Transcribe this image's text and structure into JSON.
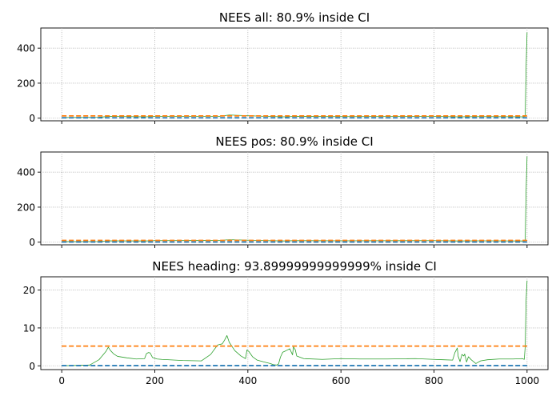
{
  "chart_data": [
    {
      "type": "line",
      "title": "NEES all: 80.9% inside CI",
      "xlabel": "",
      "ylabel": "",
      "xlim": [
        -45,
        1045
      ],
      "ylim": [
        -15,
        515
      ],
      "xticks": [
        0,
        200,
        400,
        600,
        800,
        1000
      ],
      "xtick_labels": [
        "",
        "",
        "",
        "",
        "",
        ""
      ],
      "yticks": [
        0,
        200,
        400
      ],
      "ytick_labels": [
        "0",
        "200",
        "400"
      ],
      "grid": true,
      "series": [
        {
          "role": "nees",
          "color": "#2ca02c",
          "style": "solid",
          "x": [
            0,
            80,
            100,
            180,
            200,
            340,
            360,
            440,
            480,
            500,
            600,
            800,
            850,
            900,
            990,
            996,
            998,
            1000
          ],
          "y": [
            4,
            5,
            10,
            8,
            10,
            11,
            18,
            10,
            8,
            10,
            9,
            10,
            8,
            9,
            8,
            10,
            300,
            490
          ]
        },
        {
          "role": "ci-upper",
          "color": "#ff7f0e",
          "style": "dashed",
          "x": [
            0,
            1000
          ],
          "y": [
            13,
            13
          ]
        },
        {
          "role": "ci-lower",
          "color": "#1f77b4",
          "style": "dashed",
          "x": [
            0,
            1000
          ],
          "y": [
            2,
            2
          ]
        }
      ]
    },
    {
      "type": "line",
      "title": "NEES pos: 80.9% inside CI",
      "xlabel": "",
      "ylabel": "",
      "xlim": [
        -45,
        1045
      ],
      "ylim": [
        -15,
        515
      ],
      "xticks": [
        0,
        200,
        400,
        600,
        800,
        1000
      ],
      "xtick_labels": [
        "",
        "",
        "",
        "",
        "",
        ""
      ],
      "yticks": [
        0,
        200,
        400
      ],
      "ytick_labels": [
        "0",
        "200",
        "400"
      ],
      "grid": true,
      "series": [
        {
          "role": "nees",
          "color": "#2ca02c",
          "style": "solid",
          "x": [
            0,
            80,
            100,
            180,
            200,
            340,
            360,
            440,
            480,
            500,
            600,
            800,
            850,
            900,
            990,
            996,
            998,
            1000
          ],
          "y": [
            3,
            4,
            8,
            7,
            9,
            10,
            14,
            9,
            7,
            9,
            8,
            9,
            7,
            8,
            7,
            9,
            300,
            490
          ]
        },
        {
          "role": "ci-upper",
          "color": "#ff7f0e",
          "style": "dashed",
          "x": [
            0,
            1000
          ],
          "y": [
            10,
            10
          ]
        },
        {
          "role": "ci-lower",
          "color": "#1f77b4",
          "style": "dashed",
          "x": [
            0,
            1000
          ],
          "y": [
            1,
            1
          ]
        }
      ]
    },
    {
      "type": "line",
      "title": "NEES heading: 93.89999999999999% inside CI",
      "xlabel": "",
      "ylabel": "",
      "xlim": [
        -45,
        1045
      ],
      "ylim": [
        -1,
        23.5
      ],
      "xticks": [
        0,
        200,
        400,
        600,
        800,
        1000
      ],
      "xtick_labels": [
        "0",
        "200",
        "400",
        "600",
        "800",
        "1000"
      ],
      "yticks": [
        0,
        10,
        20
      ],
      "ytick_labels": [
        "0",
        "10",
        "20"
      ],
      "grid": true,
      "series": [
        {
          "role": "nees",
          "color": "#2ca02c",
          "style": "solid",
          "x": [
            0,
            60,
            80,
            95,
            100,
            105,
            112,
            120,
            140,
            160,
            178,
            182,
            186,
            190,
            195,
            205,
            215,
            260,
            300,
            320,
            335,
            345,
            350,
            355,
            360,
            372,
            385,
            395,
            398,
            402,
            410,
            420,
            435,
            448,
            455,
            462,
            466,
            470,
            475,
            482,
            490,
            496,
            498,
            502,
            505,
            520,
            560,
            600,
            640,
            700,
            760,
            800,
            820,
            840,
            845,
            850,
            852,
            856,
            860,
            864,
            866,
            870,
            874,
            880,
            890,
            900,
            915,
            940,
            970,
            990,
            994,
            996,
            998,
            1000
          ],
          "y": [
            0,
            0.2,
            1.6,
            3.8,
            4.9,
            4.0,
            3.1,
            2.5,
            2.1,
            1.8,
            1.9,
            3.2,
            3.5,
            3.4,
            2.2,
            1.8,
            1.7,
            1.4,
            1.3,
            3.0,
            5.5,
            5.8,
            6.8,
            8.0,
            6.2,
            4.0,
            2.6,
            1.9,
            4.2,
            3.8,
            2.4,
            1.5,
            1.0,
            0.6,
            0.3,
            0.2,
            0.5,
            2.3,
            3.6,
            4.0,
            4.5,
            2.9,
            5.0,
            4.2,
            2.6,
            1.9,
            1.7,
            1.9,
            1.8,
            1.8,
            1.9,
            1.7,
            1.6,
            1.5,
            3.5,
            4.7,
            2.5,
            1.1,
            3.0,
            2.6,
            3.1,
            1.0,
            2.4,
            1.6,
            0.6,
            1.3,
            1.6,
            1.8,
            1.8,
            1.9,
            1.7,
            5.0,
            17.5,
            22.5
          ]
        },
        {
          "role": "ci-upper",
          "color": "#ff7f0e",
          "style": "dashed",
          "x": [
            0,
            1000
          ],
          "y": [
            5.2,
            5.2
          ]
        },
        {
          "role": "ci-lower",
          "color": "#1f77b4",
          "style": "dashed",
          "x": [
            0,
            1000
          ],
          "y": [
            0.05,
            0.05
          ]
        }
      ]
    }
  ]
}
